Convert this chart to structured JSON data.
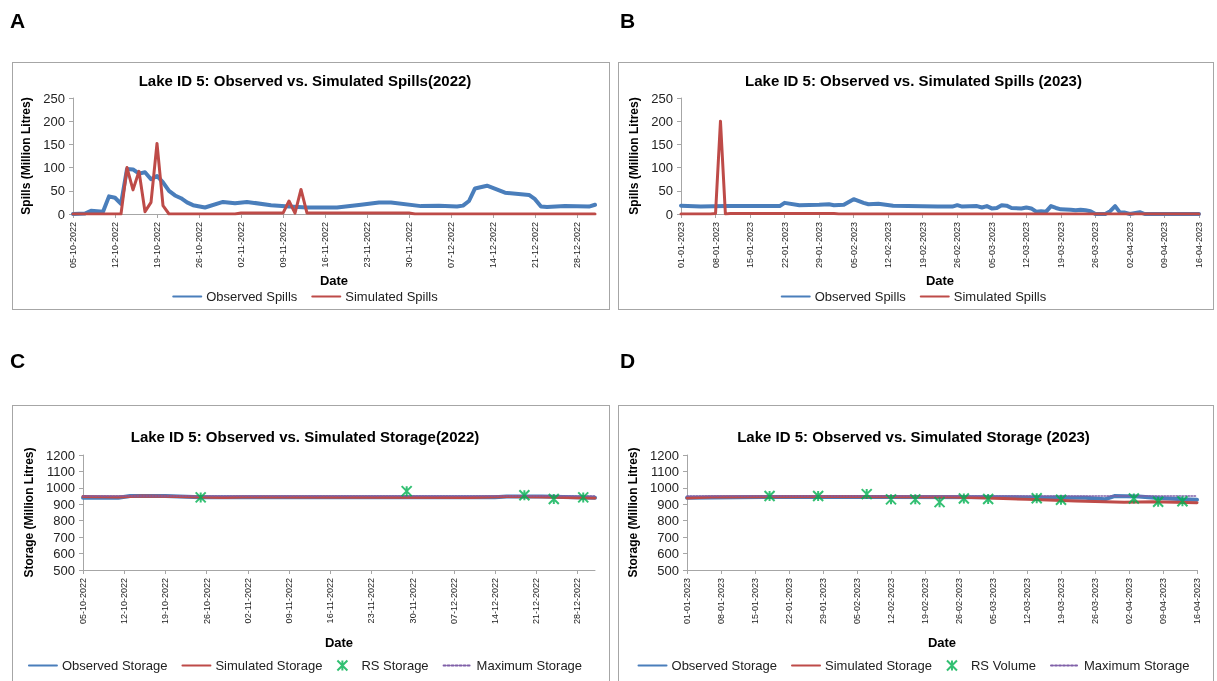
{
  "chart_data": [
    {
      "type": "line",
      "title": "Lake ID 5: Observed vs. Simulated Spills(2022)",
      "xlabel": "Date",
      "ylabel": "Spills (Million Litres)",
      "annotations": [
        "A"
      ],
      "legend": "bottom",
      "grid": false,
      "xlim": [
        "2022-10-05",
        "2022-12-31"
      ],
      "ylim": [
        0,
        250
      ],
      "yticks": [
        0,
        50,
        100,
        150,
        200,
        250
      ],
      "xticks": [
        {
          "value": "2022-10-05",
          "label": "05-10-2022"
        },
        {
          "value": "2022-10-12",
          "label": "12-10-2022"
        },
        {
          "value": "2022-10-19",
          "label": "19-10-2022"
        },
        {
          "value": "2022-10-26",
          "label": "26-10-2022"
        },
        {
          "value": "2022-11-02",
          "label": "02-11-2022"
        },
        {
          "value": "2022-11-09",
          "label": "09-11-2022"
        },
        {
          "value": "2022-11-16",
          "label": "16-11-2022"
        },
        {
          "value": "2022-11-23",
          "label": "23-11-2022"
        },
        {
          "value": "2022-11-30",
          "label": "30-11-2022"
        },
        {
          "value": "2022-12-07",
          "label": "07-12-2022"
        },
        {
          "value": "2022-12-14",
          "label": "14-12-2022"
        },
        {
          "value": "2022-12-21",
          "label": "21-12-2022"
        },
        {
          "value": "2022-12-28",
          "label": "28-12-2022"
        }
      ],
      "series": [
        {
          "name": "Observed Spills",
          "color": "#4a7ebb",
          "x": [
            "2022-10-05",
            "2022-10-07",
            "2022-10-08",
            "2022-10-10",
            "2022-10-11",
            "2022-10-12",
            "2022-10-13",
            "2022-10-14",
            "2022-10-15",
            "2022-10-16",
            "2022-10-17",
            "2022-10-18",
            "2022-10-19",
            "2022-10-20",
            "2022-10-21",
            "2022-10-22",
            "2022-10-23",
            "2022-10-24",
            "2022-10-25",
            "2022-10-27",
            "2022-10-30",
            "2022-11-01",
            "2022-11-03",
            "2022-11-07",
            "2022-11-10",
            "2022-11-13",
            "2022-11-18",
            "2022-11-22",
            "2022-11-25",
            "2022-11-27",
            "2022-12-02",
            "2022-12-05",
            "2022-12-08",
            "2022-12-09",
            "2022-12-10",
            "2022-12-11",
            "2022-12-13",
            "2022-12-16",
            "2022-12-20",
            "2022-12-21",
            "2022-12-22",
            "2022-12-23",
            "2022-12-26",
            "2022-12-30",
            "2022-12-31"
          ],
          "values": [
            0,
            1,
            7,
            5,
            38,
            35,
            22,
            97,
            96,
            87,
            90,
            75,
            82,
            68,
            50,
            40,
            34,
            25,
            19,
            14,
            26,
            23,
            26,
            19,
            16,
            14,
            14,
            20,
            25,
            25,
            17,
            18,
            16,
            18,
            28,
            55,
            61,
            46,
            41,
            32,
            16,
            15,
            17,
            16,
            20
          ]
        },
        {
          "name": "Simulated Spills",
          "color": "#be4b48",
          "x": [
            "2022-10-05",
            "2022-10-13",
            "2022-10-14",
            "2022-10-15",
            "2022-10-16",
            "2022-10-17",
            "2022-10-18",
            "2022-10-19",
            "2022-10-20",
            "2022-10-21",
            "2022-11-01",
            "2022-11-02",
            "2022-11-09",
            "2022-11-10",
            "2022-11-11",
            "2022-11-12",
            "2022-11-13",
            "2022-11-30",
            "2022-12-01",
            "2022-12-31"
          ],
          "values": [
            0,
            0,
            100,
            52,
            92,
            5,
            25,
            152,
            18,
            0,
            0,
            2,
            2,
            28,
            2,
            53,
            2,
            2,
            0,
            0
          ]
        }
      ]
    },
    {
      "type": "line",
      "title": "Lake ID 5: Observed vs. Simulated Spills (2023)",
      "xlabel": "Date",
      "ylabel": "Spills (Million Litres)",
      "annotations": [
        "B"
      ],
      "legend": "bottom",
      "grid": false,
      "xlim": [
        "2023-01-01",
        "2023-04-16"
      ],
      "ylim": [
        0,
        250
      ],
      "yticks": [
        0,
        50,
        100,
        150,
        200,
        250
      ],
      "xticks": [
        {
          "value": "2023-01-01",
          "label": "01-01-2023"
        },
        {
          "value": "2023-01-08",
          "label": "08-01-2023"
        },
        {
          "value": "2023-01-15",
          "label": "15-01-2023"
        },
        {
          "value": "2023-01-22",
          "label": "22-01-2023"
        },
        {
          "value": "2023-01-29",
          "label": "29-01-2023"
        },
        {
          "value": "2023-02-05",
          "label": "05-02-2023"
        },
        {
          "value": "2023-02-12",
          "label": "12-02-2023"
        },
        {
          "value": "2023-02-19",
          "label": "19-02-2023"
        },
        {
          "value": "2023-02-26",
          "label": "26-02-2023"
        },
        {
          "value": "2023-03-05",
          "label": "05-03-2023"
        },
        {
          "value": "2023-03-12",
          "label": "12-03-2023"
        },
        {
          "value": "2023-03-19",
          "label": "19-03-2023"
        },
        {
          "value": "2023-03-26",
          "label": "26-03-2023"
        },
        {
          "value": "2023-04-02",
          "label": "02-04-2023"
        },
        {
          "value": "2023-04-09",
          "label": "09-04-2023"
        },
        {
          "value": "2023-04-16",
          "label": "16-04-2023"
        }
      ],
      "series": [
        {
          "name": "Observed Spills",
          "color": "#4a7ebb",
          "x": [
            "2023-01-01",
            "2023-01-05",
            "2023-01-10",
            "2023-01-21",
            "2023-01-22",
            "2023-01-25",
            "2023-01-29",
            "2023-01-31",
            "2023-02-01",
            "2023-02-03",
            "2023-02-05",
            "2023-02-07",
            "2023-02-08",
            "2023-02-10",
            "2023-02-13",
            "2023-02-16",
            "2023-02-22",
            "2023-02-25",
            "2023-02-26",
            "2023-02-27",
            "2023-03-02",
            "2023-03-03",
            "2023-03-04",
            "2023-03-05",
            "2023-03-06",
            "2023-03-07",
            "2023-03-08",
            "2023-03-09",
            "2023-03-11",
            "2023-03-12",
            "2023-03-13",
            "2023-03-14",
            "2023-03-15",
            "2023-03-16",
            "2023-03-17",
            "2023-03-18",
            "2023-03-19",
            "2023-03-21",
            "2023-03-22",
            "2023-03-23",
            "2023-03-24",
            "2023-03-25",
            "2023-03-26",
            "2023-03-28",
            "2023-03-29",
            "2023-03-30",
            "2023-03-31",
            "2023-04-01",
            "2023-04-02",
            "2023-04-04",
            "2023-04-05",
            "2023-04-16"
          ],
          "values": [
            18,
            16,
            17,
            17,
            24,
            19,
            20,
            21,
            19,
            20,
            32,
            24,
            21,
            22,
            18,
            17,
            16,
            16,
            19,
            16,
            17,
            14,
            17,
            12,
            13,
            19,
            18,
            13,
            12,
            14,
            12,
            5,
            6,
            5,
            17,
            13,
            10,
            9,
            8,
            9,
            8,
            6,
            0,
            0,
            6,
            17,
            3,
            3,
            0,
            4,
            0,
            0
          ]
        },
        {
          "name": "Simulated Spills",
          "color": "#be4b48",
          "x": [
            "2023-01-01",
            "2023-01-07",
            "2023-01-08",
            "2023-01-09",
            "2023-01-10",
            "2023-01-11",
            "2023-02-01",
            "2023-02-02",
            "2023-04-16"
          ],
          "values": [
            0,
            0,
            1,
            200,
            0,
            1,
            1,
            0,
            0
          ]
        }
      ]
    },
    {
      "type": "line",
      "title": "Lake ID 5: Observed vs. Simulated Storage(2022)",
      "xlabel": "Date",
      "ylabel": "Storage (Million Litres)",
      "annotations": [
        "C"
      ],
      "legend": "bottom",
      "grid": false,
      "xlim": [
        "2022-10-05",
        "2022-12-31"
      ],
      "ylim": [
        500,
        1200
      ],
      "yticks": [
        500,
        600,
        700,
        800,
        900,
        1000,
        1100,
        1200
      ],
      "xticks": [
        {
          "value": "2022-10-05",
          "label": "05-10-2022"
        },
        {
          "value": "2022-10-12",
          "label": "12-10-2022"
        },
        {
          "value": "2022-10-19",
          "label": "19-10-2022"
        },
        {
          "value": "2022-10-26",
          "label": "26-10-2022"
        },
        {
          "value": "2022-11-02",
          "label": "02-11-2022"
        },
        {
          "value": "2022-11-09",
          "label": "09-11-2022"
        },
        {
          "value": "2022-11-16",
          "label": "16-11-2022"
        },
        {
          "value": "2022-11-23",
          "label": "23-11-2022"
        },
        {
          "value": "2022-11-30",
          "label": "30-11-2022"
        },
        {
          "value": "2022-12-07",
          "label": "07-12-2022"
        },
        {
          "value": "2022-12-14",
          "label": "14-12-2022"
        },
        {
          "value": "2022-12-21",
          "label": "21-12-2022"
        },
        {
          "value": "2022-12-28",
          "label": "28-12-2022"
        }
      ],
      "series": [
        {
          "name": "Observed Storage",
          "color": "#4a7ebb",
          "x": [
            "2022-10-05",
            "2022-10-11",
            "2022-10-13",
            "2022-10-19",
            "2022-10-25",
            "2022-12-14",
            "2022-12-16",
            "2022-12-22",
            "2022-12-31"
          ],
          "values": [
            940,
            940,
            950,
            950,
            943,
            943,
            948,
            948,
            940
          ]
        },
        {
          "name": "Simulated Storage",
          "color": "#be4b48",
          "x": [
            "2022-10-05",
            "2022-10-11",
            "2022-10-15",
            "2022-10-21",
            "2022-10-25",
            "2022-10-29",
            "2022-11-01",
            "2022-12-10",
            "2022-12-16",
            "2022-12-23",
            "2022-12-28",
            "2022-12-31"
          ],
          "values": [
            948,
            945,
            950,
            948,
            945,
            942,
            945,
            942,
            948,
            945,
            940,
            938
          ]
        },
        {
          "name": "RS Storage",
          "type": "scatter",
          "marker": "cross",
          "color": "#00b050",
          "x": [
            "2022-10-25",
            "2022-11-29",
            "2022-12-19",
            "2022-12-24",
            "2022-12-29"
          ],
          "values": [
            942,
            980,
            955,
            932,
            942
          ]
        },
        {
          "name": "Maximum Storage",
          "color": "#7f5fa8",
          "line_style": "dotted",
          "x": [
            "2022-10-05",
            "2022-12-31"
          ],
          "values": [
            950,
            950
          ]
        }
      ]
    },
    {
      "type": "line",
      "title": "Lake ID 5: Observed vs. Simulated Storage (2023)",
      "xlabel": "Date",
      "ylabel": "Storage (Million Litres)",
      "annotations": [
        "D"
      ],
      "legend": "bottom",
      "grid": false,
      "xlim": [
        "2023-01-01",
        "2023-04-16"
      ],
      "ylim": [
        500,
        1200
      ],
      "yticks": [
        500,
        600,
        700,
        800,
        900,
        1000,
        1100,
        1200
      ],
      "xticks": [
        {
          "value": "2023-01-01",
          "label": "01-01-2023"
        },
        {
          "value": "2023-01-08",
          "label": "08-01-2023"
        },
        {
          "value": "2023-01-15",
          "label": "15-01-2023"
        },
        {
          "value": "2023-01-22",
          "label": "22-01-2023"
        },
        {
          "value": "2023-01-29",
          "label": "29-01-2023"
        },
        {
          "value": "2023-02-05",
          "label": "05-02-2023"
        },
        {
          "value": "2023-02-12",
          "label": "12-02-2023"
        },
        {
          "value": "2023-02-19",
          "label": "19-02-2023"
        },
        {
          "value": "2023-02-26",
          "label": "26-02-2023"
        },
        {
          "value": "2023-03-05",
          "label": "05-03-2023"
        },
        {
          "value": "2023-03-12",
          "label": "12-03-2023"
        },
        {
          "value": "2023-03-19",
          "label": "19-03-2023"
        },
        {
          "value": "2023-03-26",
          "label": "26-03-2023"
        },
        {
          "value": "2023-04-02",
          "label": "02-04-2023"
        },
        {
          "value": "2023-04-09",
          "label": "09-04-2023"
        },
        {
          "value": "2023-04-16",
          "label": "16-04-2023"
        }
      ],
      "series": [
        {
          "name": "Observed Storage",
          "color": "#4a7ebb",
          "x": [
            "2023-01-01",
            "2023-01-21",
            "2023-02-10",
            "2023-03-12",
            "2023-03-24",
            "2023-03-28",
            "2023-03-30",
            "2023-04-04",
            "2023-04-08",
            "2023-04-13",
            "2023-04-16"
          ],
          "values": [
            940,
            945,
            945,
            942,
            940,
            930,
            950,
            948,
            938,
            930,
            928
          ]
        },
        {
          "name": "Simulated Storage",
          "color": "#be4b48",
          "x": [
            "2023-01-01",
            "2023-01-06",
            "2023-01-31",
            "2023-02-25",
            "2023-03-04",
            "2023-03-12",
            "2023-03-22",
            "2023-04-01",
            "2023-04-07",
            "2023-04-16"
          ],
          "values": [
            938,
            945,
            948,
            945,
            938,
            930,
            920,
            913,
            915,
            910
          ]
        },
        {
          "name": "RS Volume",
          "type": "scatter",
          "marker": "cross",
          "color": "#00b050",
          "x": [
            "2023-01-18",
            "2023-01-28",
            "2023-02-07",
            "2023-02-12",
            "2023-02-17",
            "2023-02-22",
            "2023-02-27",
            "2023-03-04",
            "2023-03-14",
            "2023-03-19",
            "2023-04-03",
            "2023-04-08",
            "2023-04-13"
          ],
          "values": [
            950,
            950,
            962,
            930,
            930,
            913,
            935,
            932,
            937,
            928,
            935,
            915,
            918
          ]
        },
        {
          "name": "Maximum Storage",
          "color": "#7f5fa8",
          "line_style": "dotted",
          "x": [
            "2023-01-01",
            "2023-04-16"
          ],
          "values": [
            950,
            950
          ]
        }
      ]
    }
  ]
}
